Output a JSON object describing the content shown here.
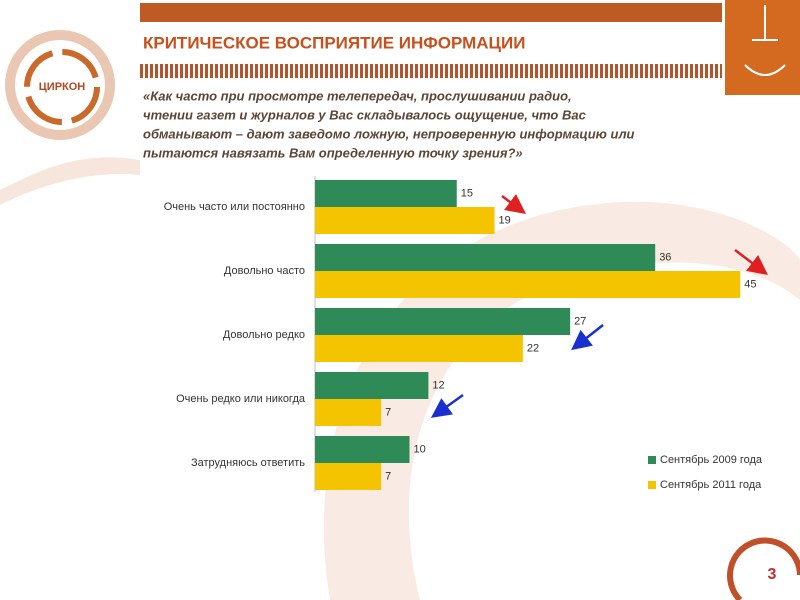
{
  "title": "КРИТИЧЕСКОЕ ВОСПРИЯТИЕ ИНФОРМАЦИИ",
  "logo": "ЦИРКОН",
  "page_number": "3",
  "question": [
    "«Как часто при просмотре телепередач, прослушивании радио,",
    "чтении газет и журналов у Вас складывалось ощущение, что Вас",
    "обманывают – дают заведомо ложную, непроверенную информацию или",
    "пытаются навязать Вам определенную точку зрения?»"
  ],
  "chart_data": {
    "type": "bar",
    "orientation": "horizontal",
    "categories": [
      "Очень часто или постоянно",
      "Довольно часто",
      "Довольно редко",
      "Очень редко или никогда",
      "Затрудняюсь ответить"
    ],
    "series": [
      {
        "name": "Сентябрь 2009 года",
        "color": "#2e8b57",
        "values": [
          15,
          36,
          27,
          12,
          10
        ]
      },
      {
        "name": "Сентябрь 2011 года",
        "color": "#f5c400",
        "values": [
          19,
          45,
          22,
          7,
          7
        ]
      }
    ],
    "legend": "lower right"
  }
}
